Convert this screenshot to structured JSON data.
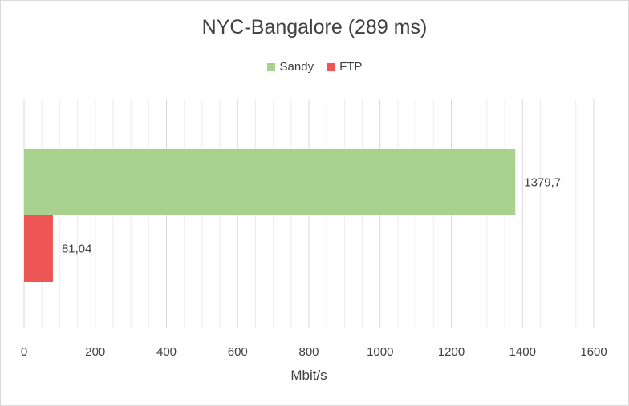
{
  "chart_data": {
    "type": "bar",
    "orientation": "horizontal",
    "title": "NYC-Bangalore (289 ms)",
    "xlabel": "Mbit/s",
    "ylabel": "",
    "xlim": [
      0,
      1600
    ],
    "xticks": [
      0,
      200,
      400,
      600,
      800,
      1000,
      1200,
      1400,
      1600
    ],
    "minor_gridlines": true,
    "legend_position": "top",
    "series": [
      {
        "name": "Sandy",
        "values": [
          1379.7
        ],
        "label": "1379,7",
        "color": "#a9d18e"
      },
      {
        "name": "FTP",
        "values": [
          81.04
        ],
        "label": "81,04",
        "color": "#ee5555"
      }
    ]
  }
}
